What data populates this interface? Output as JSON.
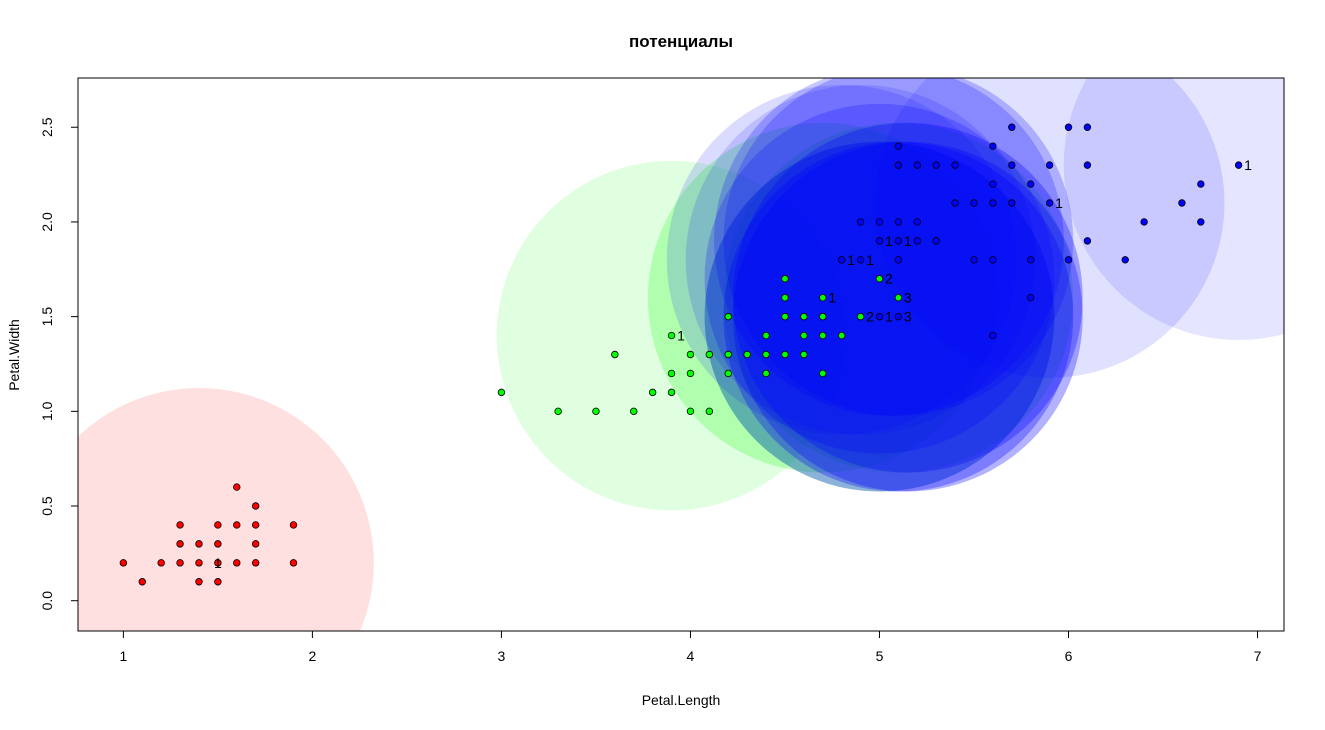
{
  "chart_data": {
    "type": "scatter",
    "title": "потенциалы",
    "xlabel": "Petal.Length",
    "ylabel": "Petal.Width",
    "xlim": [
      0.76,
      7.14
    ],
    "ylim": [
      -0.16,
      2.76
    ],
    "xticks": [
      "1",
      "2",
      "3",
      "4",
      "5",
      "6",
      "7"
    ],
    "xtick_values": [
      1,
      2,
      3,
      4,
      5,
      6,
      7
    ],
    "yticks": [
      "0.0",
      "0.5",
      "1.0",
      "1.5",
      "2.0",
      "2.5"
    ],
    "ytick_values": [
      0,
      0.5,
      1.0,
      1.5,
      2.0,
      2.5
    ],
    "grid": false,
    "legend": "none",
    "colors": {
      "setosa": "#ff0000",
      "versicolor": "#00ff00",
      "virginica": "#0000ff"
    },
    "series": [
      {
        "key": "setosa",
        "color": "#ff0000",
        "points": [
          [
            1.0,
            0.2
          ],
          [
            1.1,
            0.1
          ],
          [
            1.2,
            0.2
          ],
          [
            1.3,
            0.2
          ],
          [
            1.3,
            0.3
          ],
          [
            1.3,
            0.4
          ],
          [
            1.4,
            0.1
          ],
          [
            1.4,
            0.2
          ],
          [
            1.4,
            0.3
          ],
          [
            1.5,
            0.1
          ],
          [
            1.5,
            0.2
          ],
          [
            1.5,
            0.3
          ],
          [
            1.5,
            0.4
          ],
          [
            1.6,
            0.2
          ],
          [
            1.6,
            0.4
          ],
          [
            1.6,
            0.6
          ],
          [
            1.7,
            0.2
          ],
          [
            1.7,
            0.3
          ],
          [
            1.7,
            0.4
          ],
          [
            1.7,
            0.5
          ],
          [
            1.9,
            0.2
          ],
          [
            1.9,
            0.4
          ]
        ]
      },
      {
        "key": "versicolor",
        "color": "#00ff00",
        "points": [
          [
            3.0,
            1.1
          ],
          [
            3.3,
            1.0
          ],
          [
            3.5,
            1.0
          ],
          [
            3.6,
            1.3
          ],
          [
            3.7,
            1.0
          ],
          [
            3.8,
            1.1
          ],
          [
            3.9,
            1.1
          ],
          [
            3.9,
            1.2
          ],
          [
            3.9,
            1.4
          ],
          [
            4.0,
            1.0
          ],
          [
            4.0,
            1.2
          ],
          [
            4.0,
            1.3
          ],
          [
            4.1,
            1.0
          ],
          [
            4.1,
            1.3
          ],
          [
            4.2,
            1.2
          ],
          [
            4.2,
            1.3
          ],
          [
            4.2,
            1.5
          ],
          [
            4.3,
            1.3
          ],
          [
            4.4,
            1.2
          ],
          [
            4.4,
            1.3
          ],
          [
            4.4,
            1.4
          ],
          [
            4.5,
            1.3
          ],
          [
            4.5,
            1.5
          ],
          [
            4.5,
            1.6
          ],
          [
            4.5,
            1.7
          ],
          [
            4.6,
            1.3
          ],
          [
            4.6,
            1.4
          ],
          [
            4.6,
            1.5
          ],
          [
            4.7,
            1.2
          ],
          [
            4.7,
            1.4
          ],
          [
            4.7,
            1.5
          ],
          [
            4.7,
            1.6
          ],
          [
            4.8,
            1.4
          ],
          [
            4.8,
            1.8
          ],
          [
            4.9,
            1.5
          ],
          [
            5.0,
            1.7
          ],
          [
            5.1,
            1.6
          ]
        ]
      },
      {
        "key": "virginica",
        "color": "#0000ff",
        "points": [
          [
            4.8,
            1.8
          ],
          [
            4.9,
            1.8
          ],
          [
            4.9,
            2.0
          ],
          [
            5.0,
            1.5
          ],
          [
            5.0,
            1.9
          ],
          [
            5.0,
            2.0
          ],
          [
            5.1,
            1.5
          ],
          [
            5.1,
            1.8
          ],
          [
            5.1,
            1.9
          ],
          [
            5.1,
            2.0
          ],
          [
            5.1,
            2.3
          ],
          [
            5.1,
            2.4
          ],
          [
            5.2,
            1.9
          ],
          [
            5.2,
            2.0
          ],
          [
            5.2,
            2.3
          ],
          [
            5.3,
            1.9
          ],
          [
            5.3,
            2.3
          ],
          [
            5.4,
            2.1
          ],
          [
            5.4,
            2.3
          ],
          [
            5.5,
            1.8
          ],
          [
            5.5,
            2.1
          ],
          [
            5.6,
            1.4
          ],
          [
            5.6,
            1.8
          ],
          [
            5.6,
            2.1
          ],
          [
            5.6,
            2.2
          ],
          [
            5.6,
            2.4
          ],
          [
            5.7,
            2.1
          ],
          [
            5.7,
            2.3
          ],
          [
            5.7,
            2.5
          ],
          [
            5.8,
            1.6
          ],
          [
            5.8,
            1.8
          ],
          [
            5.8,
            2.2
          ],
          [
            5.9,
            2.1
          ],
          [
            5.9,
            2.3
          ],
          [
            6.0,
            1.8
          ],
          [
            6.0,
            2.5
          ],
          [
            6.1,
            1.9
          ],
          [
            6.1,
            2.3
          ],
          [
            6.1,
            2.5
          ],
          [
            6.3,
            1.8
          ],
          [
            6.4,
            2.0
          ],
          [
            6.6,
            2.1
          ],
          [
            6.7,
            2.0
          ],
          [
            6.7,
            2.2
          ],
          [
            6.9,
            2.3
          ]
        ]
      }
    ],
    "potentials": [
      {
        "x": 1.4,
        "y": 0.2,
        "r": 1.0,
        "color": "#ff0000",
        "alpha": 0.12
      },
      {
        "x": 3.9,
        "y": 1.4,
        "r": 1.0,
        "color": "#00ff00",
        "alpha": 0.12
      },
      {
        "x": 4.7,
        "y": 1.6,
        "r": 1.0,
        "color": "#00ff00",
        "alpha": 0.22
      },
      {
        "x": 5.0,
        "y": 1.5,
        "r": 1.0,
        "color": "#00ff00",
        "alpha": 0.22
      },
      {
        "x": 5.1,
        "y": 1.6,
        "r": 1.0,
        "color": "#00ff00",
        "alpha": 0.22
      },
      {
        "x": 4.8,
        "y": 1.8,
        "r": 1.0,
        "color": "#0000ff",
        "alpha": 0.14
      },
      {
        "x": 4.9,
        "y": 1.8,
        "r": 1.0,
        "color": "#0000ff",
        "alpha": 0.14
      },
      {
        "x": 5.0,
        "y": 1.5,
        "r": 1.0,
        "color": "#0000ff",
        "alpha": 0.3
      },
      {
        "x": 5.0,
        "y": 1.7,
        "r": 1.0,
        "color": "#0000ff",
        "alpha": 0.22
      },
      {
        "x": 5.1,
        "y": 1.5,
        "r": 1.0,
        "color": "#0000ff",
        "alpha": 0.3
      },
      {
        "x": 5.05,
        "y": 1.9,
        "r": 1.0,
        "color": "#0000ff",
        "alpha": 0.22
      },
      {
        "x": 5.1,
        "y": 1.9,
        "r": 1.0,
        "color": "#0000ff",
        "alpha": 0.22
      },
      {
        "x": 5.15,
        "y": 1.6,
        "r": 1.0,
        "color": "#0000ff",
        "alpha": 0.3
      },
      {
        "x": 5.15,
        "y": 1.5,
        "r": 1.0,
        "color": "#0000ff",
        "alpha": 0.3
      },
      {
        "x": 5.9,
        "y": 2.1,
        "r": 1.0,
        "color": "#0000ff",
        "alpha": 0.12
      },
      {
        "x": 6.9,
        "y": 2.3,
        "r": 1.0,
        "color": "#0000ff",
        "alpha": 0.1
      }
    ],
    "annotations": [
      {
        "x": 1.5,
        "y": 0.2,
        "text": "1"
      },
      {
        "x": 3.95,
        "y": 1.4,
        "text": "1"
      },
      {
        "x": 4.75,
        "y": 1.6,
        "text": "1"
      },
      {
        "x": 4.85,
        "y": 1.8,
        "text": "1"
      },
      {
        "x": 4.95,
        "y": 1.8,
        "text": "1"
      },
      {
        "x": 4.95,
        "y": 1.5,
        "text": "2"
      },
      {
        "x": 5.05,
        "y": 1.5,
        "text": "1"
      },
      {
        "x": 5.05,
        "y": 1.7,
        "text": "2"
      },
      {
        "x": 5.05,
        "y": 1.9,
        "text": "1"
      },
      {
        "x": 5.15,
        "y": 1.9,
        "text": "1"
      },
      {
        "x": 5.15,
        "y": 1.6,
        "text": "3"
      },
      {
        "x": 5.15,
        "y": 1.5,
        "text": "3"
      },
      {
        "x": 5.95,
        "y": 2.1,
        "text": "1"
      },
      {
        "x": 6.95,
        "y": 2.3,
        "text": "1"
      }
    ]
  }
}
